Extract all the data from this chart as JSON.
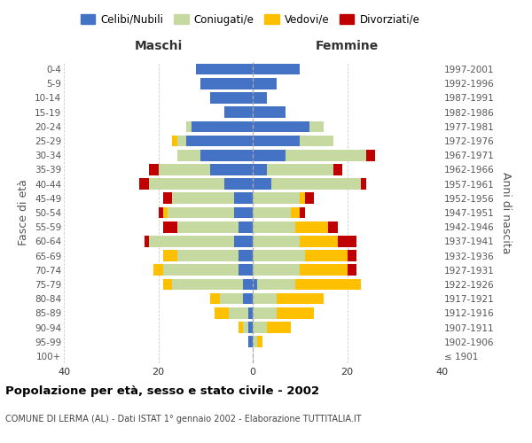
{
  "age_groups": [
    "100+",
    "95-99",
    "90-94",
    "85-89",
    "80-84",
    "75-79",
    "70-74",
    "65-69",
    "60-64",
    "55-59",
    "50-54",
    "45-49",
    "40-44",
    "35-39",
    "30-34",
    "25-29",
    "20-24",
    "15-19",
    "10-14",
    "5-9",
    "0-4"
  ],
  "birth_years": [
    "≤ 1901",
    "1902-1906",
    "1907-1911",
    "1912-1916",
    "1917-1921",
    "1922-1926",
    "1927-1931",
    "1932-1936",
    "1937-1941",
    "1942-1946",
    "1947-1951",
    "1952-1956",
    "1957-1961",
    "1962-1966",
    "1967-1971",
    "1972-1976",
    "1977-1981",
    "1982-1986",
    "1987-1991",
    "1992-1996",
    "1997-2001"
  ],
  "colors": {
    "celibi": "#4472c4",
    "coniugati": "#c5d9a0",
    "vedovi": "#ffc000",
    "divorziati": "#c00000"
  },
  "maschi": {
    "celibi": [
      0,
      1,
      1,
      1,
      2,
      2,
      3,
      3,
      4,
      3,
      4,
      4,
      6,
      9,
      11,
      14,
      13,
      6,
      9,
      11,
      12
    ],
    "coniugati": [
      0,
      0,
      1,
      4,
      5,
      15,
      16,
      13,
      18,
      13,
      14,
      13,
      16,
      11,
      5,
      2,
      1,
      0,
      0,
      0,
      0
    ],
    "vedovi": [
      0,
      0,
      1,
      3,
      2,
      2,
      2,
      3,
      0,
      0,
      1,
      0,
      0,
      0,
      0,
      1,
      0,
      0,
      0,
      0,
      0
    ],
    "divorziati": [
      0,
      0,
      0,
      0,
      0,
      0,
      0,
      0,
      1,
      3,
      1,
      2,
      2,
      2,
      0,
      0,
      0,
      0,
      0,
      0,
      0
    ]
  },
  "femmine": {
    "celibi": [
      0,
      0,
      0,
      0,
      0,
      1,
      0,
      0,
      0,
      0,
      0,
      0,
      4,
      3,
      7,
      10,
      12,
      7,
      3,
      5,
      10
    ],
    "coniugati": [
      0,
      1,
      3,
      5,
      5,
      8,
      10,
      11,
      10,
      9,
      8,
      10,
      19,
      14,
      17,
      7,
      3,
      0,
      0,
      0,
      0
    ],
    "vedovi": [
      0,
      1,
      5,
      8,
      10,
      14,
      10,
      9,
      8,
      7,
      2,
      1,
      0,
      0,
      0,
      0,
      0,
      0,
      0,
      0,
      0
    ],
    "divorziati": [
      0,
      0,
      0,
      0,
      0,
      0,
      2,
      2,
      4,
      2,
      1,
      2,
      1,
      2,
      2,
      0,
      0,
      0,
      0,
      0,
      0
    ]
  },
  "title": "Popolazione per età, sesso e stato civile - 2002",
  "subtitle": "COMUNE DI LERMA (AL) - Dati ISTAT 1° gennaio 2002 - Elaborazione TUTTITALIA.IT",
  "xlabel_left": "Maschi",
  "xlabel_right": "Femmine",
  "ylabel_left": "Fasce di età",
  "ylabel_right": "Anni di nascita",
  "xlim": 40,
  "legend_labels": [
    "Celibi/Nubili",
    "Coniugati/e",
    "Vedovi/e",
    "Divorziati/e"
  ],
  "background_color": "#ffffff",
  "grid_color": "#cccccc"
}
